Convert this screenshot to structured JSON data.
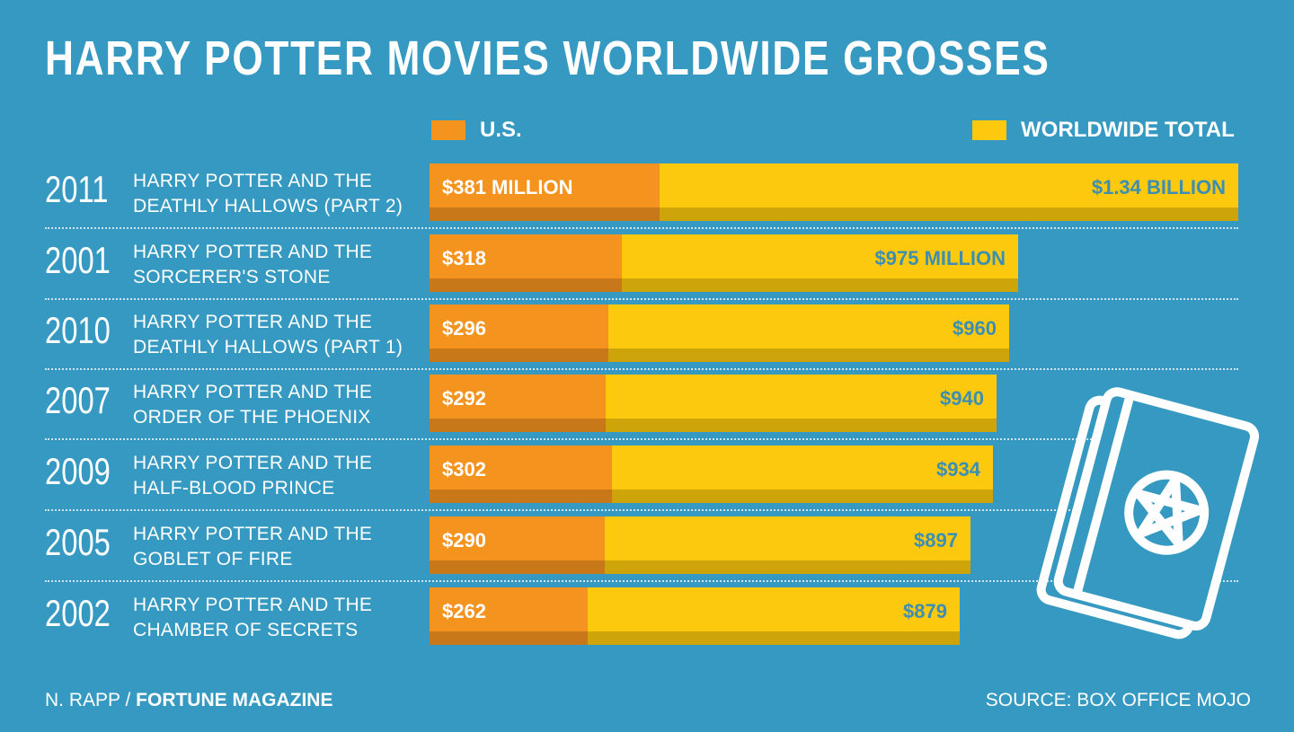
{
  "title": "HARRY POTTER MOVIES WORLDWIDE GROSSES",
  "legend": {
    "us": "U.S.",
    "worldwide": "WORLDWIDE TOTAL"
  },
  "colors": {
    "background": "#3599c1",
    "us": "#f5931f",
    "worldwide": "#fcc90e"
  },
  "credit": {
    "author": "N. RAPP /",
    "publication": "FORTUNE MAGAZINE"
  },
  "source": "SOURCE: BOX OFFICE MOJO",
  "icon": "spellbook-pentagram-icon",
  "chart_data": {
    "type": "bar",
    "orientation": "horizontal",
    "stacked": "overlay",
    "title": "HARRY POTTER MOVIES WORLDWIDE GROSSES",
    "unit": "USD millions",
    "xlim": [
      0,
      1340
    ],
    "legend_position": "top",
    "series": [
      {
        "name": "U.S.",
        "values": [
          381,
          318,
          296,
          292,
          302,
          290,
          262
        ]
      },
      {
        "name": "WORLDWIDE TOTAL",
        "values": [
          1340,
          975,
          960,
          940,
          934,
          897,
          879
        ]
      }
    ],
    "rows": [
      {
        "year": "2011",
        "movie": "HARRY POTTER AND THE\nDEATHLY HALLOWS (PART 2)",
        "us": 381,
        "ww": 1340,
        "us_label": "$381 MILLION",
        "ww_label": "$1.34 BILLION"
      },
      {
        "year": "2001",
        "movie": "HARRY POTTER AND THE\nSORCERER'S STONE",
        "us": 318,
        "ww": 975,
        "us_label": "$318",
        "ww_label": "$975 MILLION"
      },
      {
        "year": "2010",
        "movie": "HARRY POTTER AND THE\nDEATHLY HALLOWS (PART 1)",
        "us": 296,
        "ww": 960,
        "us_label": "$296",
        "ww_label": "$960"
      },
      {
        "year": "2007",
        "movie": "HARRY POTTER AND THE\nORDER OF THE PHOENIX",
        "us": 292,
        "ww": 940,
        "us_label": "$292",
        "ww_label": "$940"
      },
      {
        "year": "2009",
        "movie": "HARRY POTTER AND THE\nHALF-BLOOD PRINCE",
        "us": 302,
        "ww": 934,
        "us_label": "$302",
        "ww_label": "$934"
      },
      {
        "year": "2005",
        "movie": "HARRY POTTER AND THE\nGOBLET OF FIRE",
        "us": 290,
        "ww": 897,
        "us_label": "$290",
        "ww_label": "$897"
      },
      {
        "year": "2002",
        "movie": "HARRY POTTER AND THE\nCHAMBER OF SECRETS",
        "us": 262,
        "ww": 879,
        "us_label": "$262",
        "ww_label": "$879"
      }
    ]
  }
}
